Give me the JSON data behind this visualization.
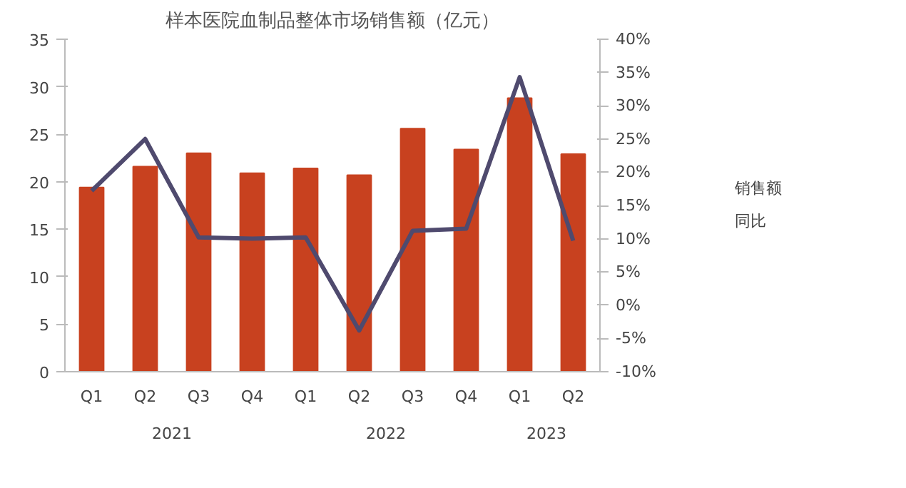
{
  "chart_data": {
    "type": "bar",
    "title": "样本医院血制品整体市场销售额（亿元）",
    "categories": [
      "Q1",
      "Q2",
      "Q3",
      "Q4",
      "Q1",
      "Q2",
      "Q3",
      "Q4",
      "Q1",
      "Q2"
    ],
    "series": [
      {
        "name": "销售额",
        "color": "#c8411f",
        "values": [
          19.4,
          21.6,
          23.0,
          20.9,
          21.4,
          20.7,
          25.6,
          23.4,
          28.8,
          22.9
        ]
      },
      {
        "name": "同比",
        "type": "line",
        "axis": "y2",
        "color": "#4f4a6e",
        "values": [
          17.2,
          25.0,
          10.2,
          10.0,
          10.2,
          -3.8,
          11.2,
          11.5,
          34.3,
          9.7
        ]
      }
    ],
    "annotations": [
      "2021",
      "2022",
      "2023"
    ],
    "ylim": [
      0,
      35
    ],
    "yticks": [
      0,
      5,
      10,
      15,
      20,
      25,
      30,
      35
    ],
    "y2lim": [
      -10,
      40
    ],
    "y2ticks": [
      {
        "value": -10,
        "label": "-10%"
      },
      {
        "value": -5,
        "label": "-5%"
      },
      {
        "value": 0,
        "label": "0%"
      },
      {
        "value": 5,
        "label": "5%"
      },
      {
        "value": 10,
        "label": "10%"
      },
      {
        "value": 15,
        "label": "15%"
      },
      {
        "value": 20,
        "label": "20%"
      },
      {
        "value": 25,
        "label": "25%"
      },
      {
        "value": 30,
        "label": "30%"
      },
      {
        "value": 35,
        "label": "35%"
      },
      {
        "value": 40,
        "label": "40%"
      }
    ],
    "legend": "right",
    "grid": false
  }
}
